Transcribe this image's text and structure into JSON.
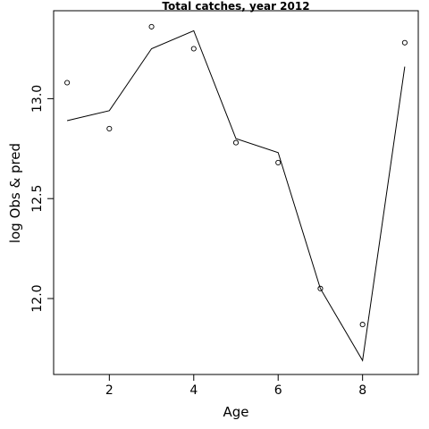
{
  "chart_data": {
    "type": "line",
    "title": "Total catches, year 2012",
    "xlabel": "Age",
    "ylabel": "log Obs & pred",
    "x": [
      1,
      2,
      3,
      4,
      5,
      6,
      7,
      8,
      9
    ],
    "series": [
      {
        "values": [
          13.08,
          12.85,
          13.36,
          13.25,
          12.78,
          12.68,
          12.05,
          11.87,
          13.28
        ],
        "style": "points"
      },
      {
        "values": [
          12.89,
          12.94,
          13.25,
          13.34,
          12.8,
          12.73,
          12.05,
          11.69,
          13.16
        ],
        "style": "line"
      }
    ],
    "xlim": [
      0.68,
      9.32
    ],
    "ylim": [
      11.62,
      13.44
    ],
    "xticks": [
      2,
      4,
      6,
      8
    ],
    "yticks": [
      12.0,
      12.5,
      13.0
    ],
    "xtick_labels": [
      "2",
      "4",
      "6",
      "8"
    ],
    "ytick_labels": [
      "12.0",
      "12.5",
      "13.0"
    ],
    "grid": false,
    "legend": "none"
  }
}
